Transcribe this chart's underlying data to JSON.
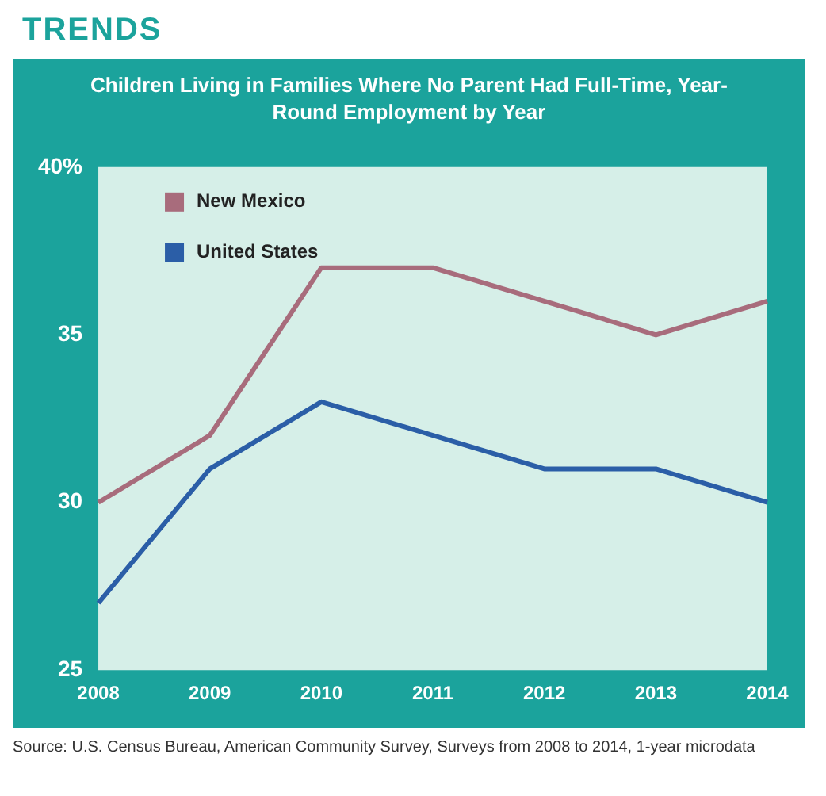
{
  "chart_data": {
    "type": "line",
    "title": "TRENDS",
    "subtitle": "Children Living in Families Where No Parent Had Full-Time, Year-Round Employment by Year",
    "categories": [
      "2008",
      "2009",
      "2010",
      "2011",
      "2012",
      "2013",
      "2014"
    ],
    "series": [
      {
        "name": "New Mexico",
        "color": "#a86c7c",
        "values": [
          30,
          32,
          37,
          37,
          36,
          35,
          36
        ]
      },
      {
        "name": "United States",
        "color": "#2b5ea7",
        "values": [
          27,
          31,
          33,
          32,
          31,
          31,
          30
        ]
      }
    ],
    "ylim": [
      25,
      40
    ],
    "yticks": [
      25,
      30,
      35,
      {
        "value": 40,
        "label": "40%"
      }
    ],
    "grid": false,
    "legend": "top left",
    "marker": "none",
    "line_style": "solid",
    "annotations": [
      "Source: U.S. Census Bureau, American Community Survey, Surveys from 2008 to 2014, 1-year microdata"
    ]
  }
}
